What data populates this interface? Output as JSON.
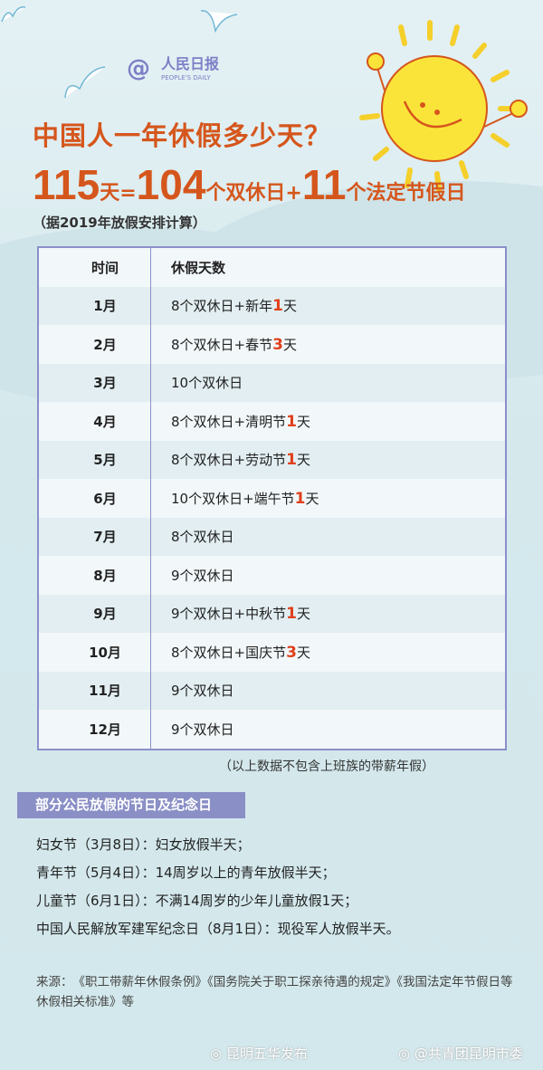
{
  "logo": {
    "symbol": "@",
    "name": "人民日报",
    "name_en": "PEOPLE'S DAILY"
  },
  "title": "中国人一年休假多少天？",
  "equation": {
    "total": "115",
    "total_unit": "天=",
    "weekend": "104",
    "weekend_unit": "个双休日+",
    "legal": "11",
    "legal_unit": "个法定节假日"
  },
  "basis": "（据2019年放假安排计算）",
  "table": {
    "headers": [
      "时间",
      "休假天数"
    ],
    "rows": [
      {
        "month": "1月",
        "pre": "8个双休日+新年",
        "num": "1",
        "post": "天"
      },
      {
        "month": "2月",
        "pre": "8个双休日+春节",
        "num": "3",
        "post": "天"
      },
      {
        "month": "3月",
        "pre": "10个双休日",
        "num": "",
        "post": ""
      },
      {
        "month": "4月",
        "pre": "8个双休日+清明节",
        "num": "1",
        "post": "天"
      },
      {
        "month": "5月",
        "pre": "8个双休日+劳动节",
        "num": "1",
        "post": "天"
      },
      {
        "month": "6月",
        "pre": "10个双休日+端午节",
        "num": "1",
        "post": "天"
      },
      {
        "month": "7月",
        "pre": "8个双休日",
        "num": "",
        "post": ""
      },
      {
        "month": "8月",
        "pre": "9个双休日",
        "num": "",
        "post": ""
      },
      {
        "month": "9月",
        "pre": "9个双休日+中秋节",
        "num": "1",
        "post": "天"
      },
      {
        "month": "10月",
        "pre": "8个双休日+国庆节",
        "num": "3",
        "post": "天"
      },
      {
        "month": "11月",
        "pre": "9个双休日",
        "num": "",
        "post": ""
      },
      {
        "month": "12月",
        "pre": "9个双休日",
        "num": "",
        "post": ""
      }
    ]
  },
  "note": "（以上数据不包含上班族的带薪年假）",
  "section_title": "部分公民放假的节日及纪念日",
  "items": [
    "妇女节（3月8日）：妇女放假半天；",
    "青年节（5月4日）：14周岁以上的青年放假半天；",
    "儿童节（6月1日）：不满14周岁的少年儿童放假1天；",
    "中国人民解放军建军纪念日（8月1日）：现役军人放假半天。"
  ],
  "source": "来源：　《职工带薪年休假条例》《国务院关于职工探亲待遇的规定》《我国法定年节假日等休假相关标准》等",
  "watermarks": [
    "昆明五华发布",
    "@共青团昆明市委"
  ],
  "colors": {
    "accent": "#d5561c",
    "highlight": "#e0401c",
    "table_border": "#8b8fc9",
    "section_bg": "#8a8fc6"
  }
}
